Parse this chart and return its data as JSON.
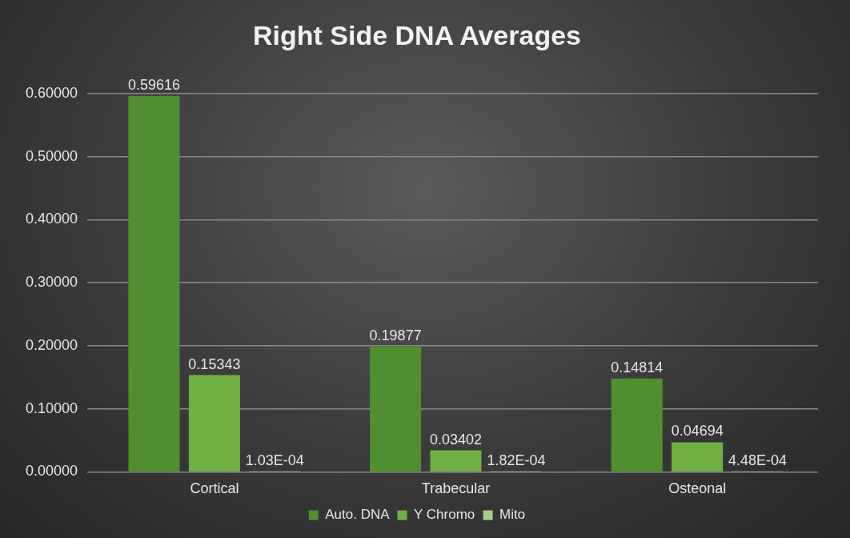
{
  "chart_data": {
    "type": "bar",
    "title": "Right Side DNA Averages",
    "categories": [
      "Cortical",
      "Trabecular",
      "Osteonal"
    ],
    "series": [
      {
        "name": "Auto. DNA",
        "color": "#4f8f2f",
        "values": [
          0.59616,
          0.19877,
          0.14814
        ],
        "value_labels": [
          "0.59616",
          "0.19877",
          "0.14814"
        ]
      },
      {
        "name": "Y Chromo",
        "color": "#70b043",
        "values": [
          0.15343,
          0.03402,
          0.04694
        ],
        "value_labels": [
          "0.15343",
          "0.03402",
          "0.04694"
        ]
      },
      {
        "name": "Mito",
        "color": "#a9cf8f",
        "values": [
          0.000103,
          0.000182,
          0.000448
        ],
        "value_labels": [
          "1.03E-04",
          "1.82E-04",
          "4.48E-04"
        ]
      }
    ],
    "ylim": [
      0,
      0.6
    ],
    "yticks": [
      {
        "value": 0,
        "label": "0.00000"
      },
      {
        "value": 0.1,
        "label": "0.10000"
      },
      {
        "value": 0.2,
        "label": "0.20000"
      },
      {
        "value": 0.3,
        "label": "0.30000"
      },
      {
        "value": 0.4,
        "label": "0.40000"
      },
      {
        "value": 0.5,
        "label": "0.50000"
      },
      {
        "value": 0.6,
        "label": "0.60000"
      }
    ],
    "grid": "y",
    "legend": "bottom"
  }
}
